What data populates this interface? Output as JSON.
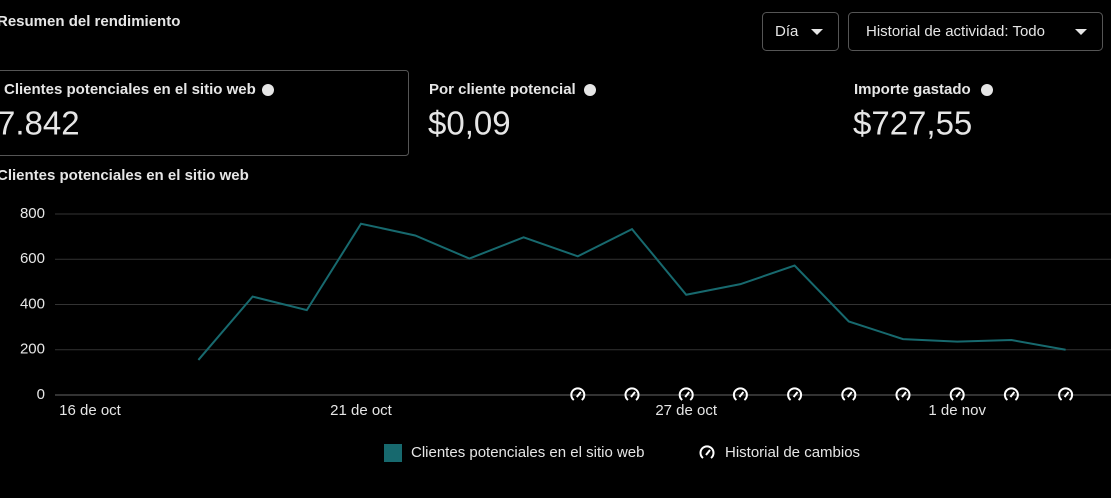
{
  "header": {
    "title": "Resumen del rendimiento",
    "buttons": [
      "Día",
      "Historial de actividad: Todo"
    ]
  },
  "metrics": [
    {
      "label": "Clientes potenciales en el sitio web",
      "value": "7.842"
    },
    {
      "label": "Por cliente potencial",
      "value": "$0,09"
    },
    {
      "label": "Importe gastado",
      "value": "$727,55"
    }
  ],
  "chart_data": {
    "type": "line",
    "title": "Clientes potenciales en el sitio web",
    "categories": [
      "16 de oct",
      null,
      null,
      null,
      null,
      "21 de oct",
      null,
      null,
      null,
      null,
      null,
      "27 de oct",
      null,
      null,
      null,
      null,
      "1 de nov",
      null,
      null
    ],
    "series": [
      {
        "name": "Clientes potenciales en el sitio web",
        "color": "#17696e",
        "values": [
          null,
          null,
          155,
          435,
          375,
          757,
          705,
          603,
          697,
          613,
          733,
          443,
          490,
          572,
          325,
          247,
          236,
          243,
          200
        ]
      },
      {
        "name": "Historial de cambios",
        "type": "marker",
        "color": "#ffffff",
        "values": [
          null,
          null,
          null,
          null,
          null,
          null,
          null,
          null,
          null,
          0,
          0,
          0,
          0,
          0,
          0,
          0,
          0,
          0,
          0
        ]
      }
    ],
    "ylim": [
      0,
      800
    ],
    "yticks": [
      0,
      200,
      400,
      600,
      800
    ],
    "grid": true
  }
}
